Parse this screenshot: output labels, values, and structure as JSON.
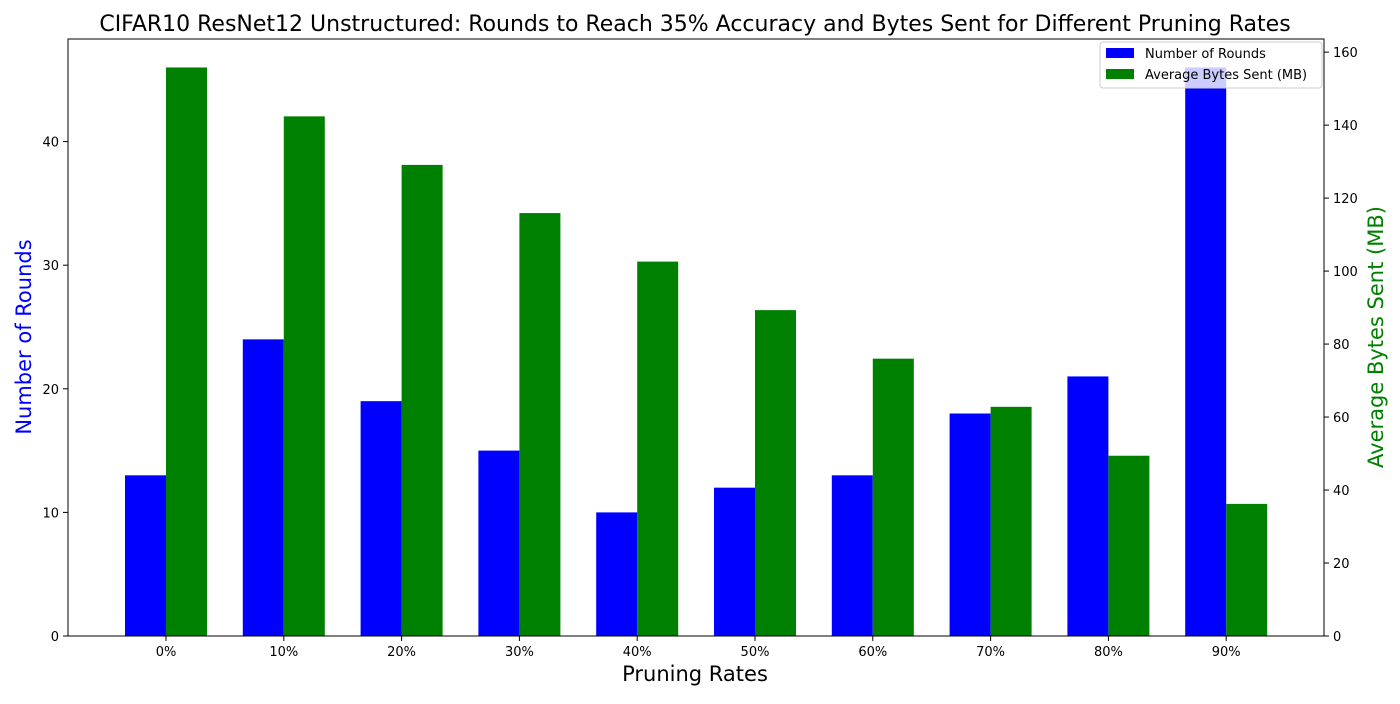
{
  "chart_data": {
    "type": "bar",
    "title": "CIFAR10 ResNet12 Unstructured: Rounds to Reach 35% Accuracy and Bytes Sent for Different Pruning Rates",
    "xlabel": "Pruning Rates",
    "categories": [
      "0%",
      "10%",
      "20%",
      "30%",
      "40%",
      "50%",
      "60%",
      "70%",
      "80%",
      "90%"
    ],
    "series": [
      {
        "name": "Number of Rounds",
        "axis": "left",
        "color": "#0000ff",
        "values": [
          13,
          24,
          19,
          15,
          10,
          12,
          13,
          18,
          21,
          46
        ]
      },
      {
        "name": "Average Bytes Sent (MB)",
        "axis": "right",
        "color": "#008000",
        "values": [
          155.8,
          142.4,
          129.1,
          115.9,
          102.6,
          89.3,
          76.0,
          62.8,
          49.4,
          36.2
        ]
      }
    ],
    "y_left": {
      "label": "Number of Rounds",
      "label_color": "#0000ff",
      "ylim": [
        0,
        48.3
      ],
      "ticks": [
        0,
        10,
        20,
        30,
        40
      ]
    },
    "y_right": {
      "label": "Average Bytes Sent (MB)",
      "label_color": "#008000",
      "ylim": [
        0,
        163.6
      ],
      "ticks": [
        0,
        20,
        40,
        60,
        80,
        100,
        120,
        140,
        160
      ]
    },
    "grid": false,
    "legend_position": "top-right"
  }
}
